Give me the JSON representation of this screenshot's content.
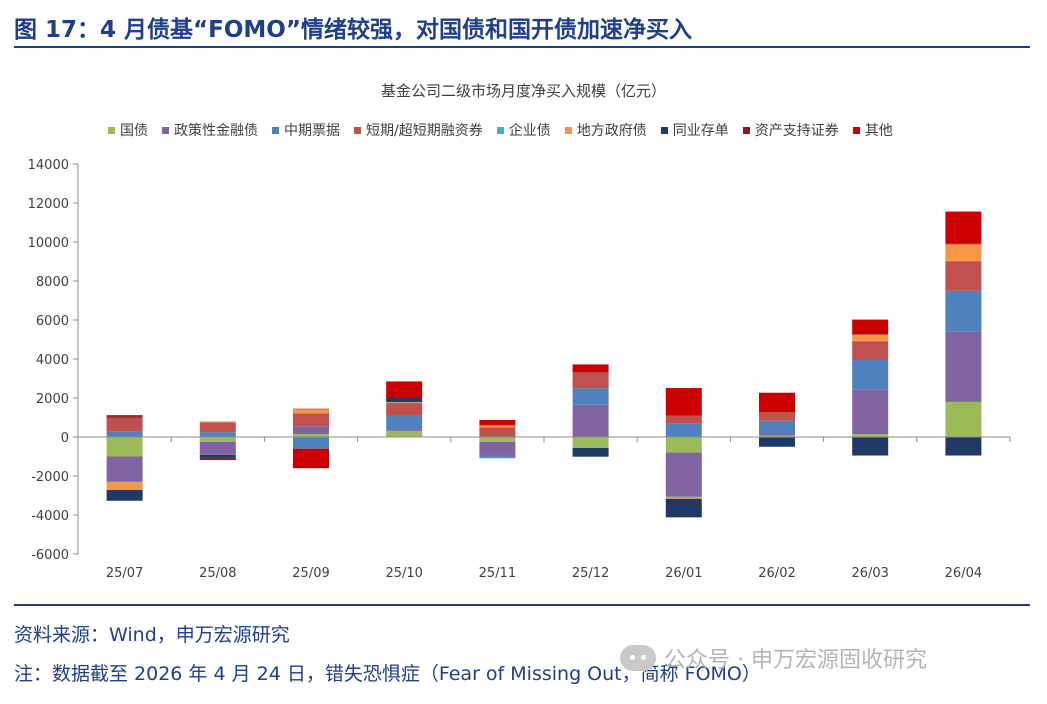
{
  "header": {
    "figure_title": "图 17：4 月债基“FOMO”情绪较强，对国债和国开债加速净买入"
  },
  "footer": {
    "source": "资料来源：Wind，申万宏源研究",
    "note": "注：数据截至 2026 年 4 月 24 日，错失恐惧症（Fear of Missing Out，简称 FOMO）",
    "watermark": "公众号 · 申万宏源固收研究"
  },
  "chart_data": {
    "type": "bar",
    "stacked": true,
    "title": "基金公司二级市场月度净买入规模（亿元）",
    "categories": [
      "25/07",
      "25/08",
      "25/09",
      "25/10",
      "25/11",
      "25/12",
      "26/01",
      "26/02",
      "26/03",
      "26/04"
    ],
    "ylim": [
      -6000,
      14000
    ],
    "yticks": [
      -6000,
      -4000,
      -2000,
      0,
      2000,
      4000,
      6000,
      8000,
      10000,
      12000,
      14000
    ],
    "grid": false,
    "legend_position": "top",
    "series": [
      {
        "name": "国债",
        "color": "#9bbb59",
        "values": [
          -1000,
          -250,
          150,
          300,
          -250,
          -500,
          -800,
          80,
          150,
          1800
        ]
      },
      {
        "name": "政策性金融债",
        "color": "#8064a2",
        "values": [
          -1300,
          -650,
          400,
          50,
          -700,
          1650,
          -2250,
          100,
          2300,
          3600
        ]
      },
      {
        "name": "中期票据",
        "color": "#4f81bd",
        "values": [
          300,
          250,
          -600,
          750,
          -100,
          850,
          700,
          650,
          1500,
          2100
        ]
      },
      {
        "name": "短期/超短期融资券",
        "color": "#c0504d",
        "values": [
          700,
          500,
          650,
          650,
          500,
          800,
          400,
          400,
          950,
          1500
        ]
      },
      {
        "name": "企业债",
        "color": "#4bacc6",
        "values": [
          -20,
          -20,
          30,
          10,
          -40,
          -10,
          -20,
          0,
          30,
          30
        ]
      },
      {
        "name": "地方政府债",
        "color": "#f79646",
        "values": [
          -400,
          50,
          200,
          30,
          100,
          -50,
          -100,
          30,
          320,
          850
        ]
      },
      {
        "name": "同业存单",
        "color": "#1f3864",
        "values": [
          -550,
          -150,
          0,
          250,
          0,
          -450,
          -950,
          -500,
          -950,
          -950
        ]
      },
      {
        "name": "资产支持证券",
        "color": "#7f1f1f",
        "values": [
          70,
          -60,
          20,
          10,
          20,
          20,
          10,
          10,
          20,
          30
        ]
      },
      {
        "name": "其他",
        "color": "#cc0000",
        "values": [
          50,
          -50,
          -1000,
          800,
          250,
          400,
          1400,
          1000,
          750,
          1650
        ]
      }
    ]
  }
}
